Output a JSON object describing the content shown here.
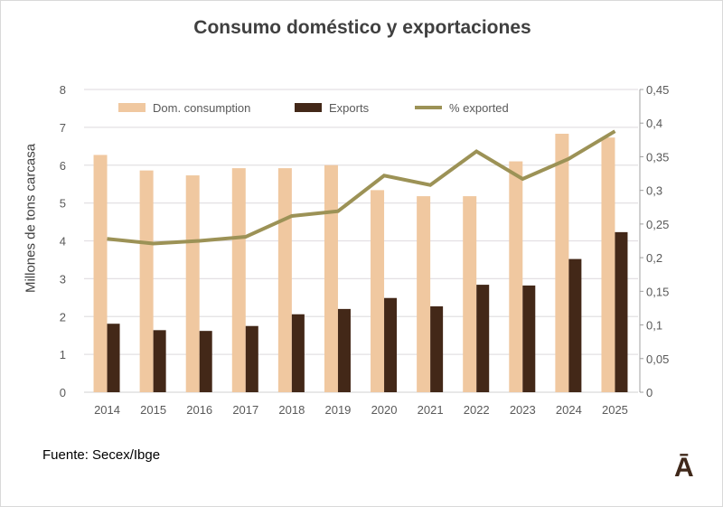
{
  "chart_data": {
    "type": "bar",
    "title": "Consumo doméstico y exportaciones",
    "ylabel": "Millones de tons carcasa",
    "categories": [
      "2014",
      "2015",
      "2016",
      "2017",
      "2018",
      "2019",
      "2020",
      "2021",
      "2022",
      "2023",
      "2024",
      "2025"
    ],
    "ylim": [
      0,
      8
    ],
    "yticks": [
      "0",
      "1",
      "2",
      "3",
      "4",
      "5",
      "6",
      "7",
      "8"
    ],
    "y2lim": [
      0,
      0.45
    ],
    "y2ticks": [
      "0",
      "0,05",
      "0,1",
      "0,15",
      "0,2",
      "0,25",
      "0,3",
      "0,35",
      "0,4",
      "0,45"
    ],
    "grid": true,
    "legend_position": "top",
    "series": [
      {
        "name": "Dom. consumption",
        "type": "bar",
        "axis": "left",
        "color": "#f0c8a0",
        "values": [
          6.27,
          5.86,
          5.73,
          5.92,
          5.92,
          6.0,
          5.34,
          5.18,
          5.18,
          6.1,
          6.83,
          6.73
        ]
      },
      {
        "name": "Exports",
        "type": "bar",
        "axis": "left",
        "color": "#432818",
        "values": [
          1.81,
          1.64,
          1.62,
          1.75,
          2.06,
          2.2,
          2.49,
          2.27,
          2.84,
          2.82,
          3.52,
          4.23
        ]
      },
      {
        "name": "% exported",
        "type": "line",
        "axis": "right",
        "color": "#9c9256",
        "values": [
          0.228,
          0.221,
          0.225,
          0.231,
          0.262,
          0.269,
          0.322,
          0.308,
          0.358,
          0.317,
          0.347,
          0.388
        ]
      }
    ]
  },
  "source": "Fuente: Secex/Ibge",
  "logo": "Ā"
}
